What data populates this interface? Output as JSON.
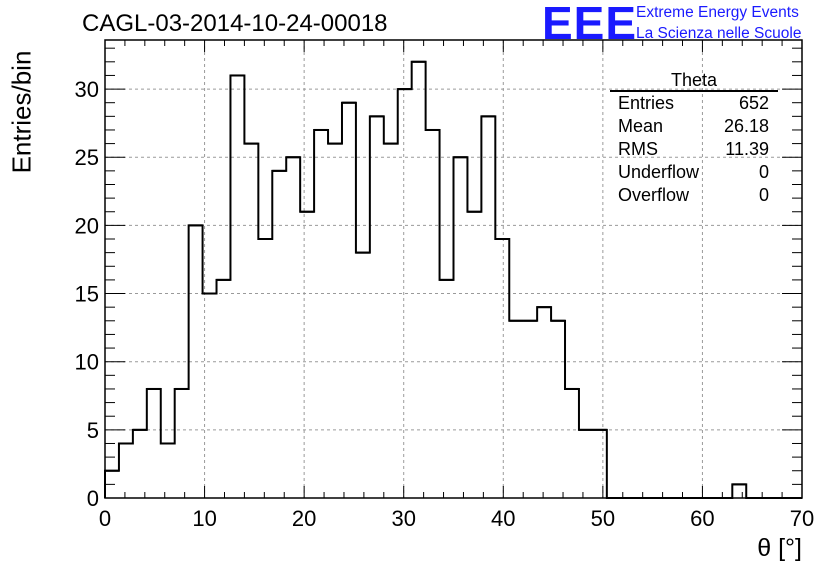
{
  "title": "CAGL-03-2014-10-24-00018",
  "logo": {
    "mark": "EEE",
    "line1": "Extreme Energy Events",
    "line2": "La Scienza nelle Scuole",
    "color": "#1a1aff"
  },
  "stats_box": {
    "name": "Theta",
    "rows": [
      {
        "label": "Entries",
        "value": "652"
      },
      {
        "label": "Mean",
        "value": "26.18"
      },
      {
        "label": "RMS",
        "value": "11.39"
      },
      {
        "label": "Underflow",
        "value": "0"
      },
      {
        "label": "Overflow",
        "value": "0"
      }
    ]
  },
  "chart_data": {
    "type": "histogram",
    "title": "CAGL-03-2014-10-24-00018",
    "xlabel": "θ [°]",
    "ylabel": "Entries/bin",
    "xlim": [
      0,
      70
    ],
    "ylim": [
      0,
      33.6
    ],
    "xticks": [
      0,
      10,
      20,
      30,
      40,
      50,
      60,
      70
    ],
    "yticks": [
      0,
      5,
      10,
      15,
      20,
      25,
      30
    ],
    "grid": true,
    "bin_width": 1.4,
    "bins": 50,
    "values": [
      2,
      4,
      5,
      8,
      4,
      8,
      20,
      15,
      16,
      31,
      26,
      19,
      24,
      25,
      21,
      27,
      26,
      29,
      18,
      28,
      26,
      30,
      32,
      27,
      16,
      25,
      21,
      28,
      19,
      13,
      13,
      14,
      13,
      8,
      5,
      5,
      0,
      0,
      0,
      0,
      0,
      0,
      0,
      0,
      0,
      1,
      0,
      0,
      0,
      0
    ],
    "line_color": "#000000"
  }
}
